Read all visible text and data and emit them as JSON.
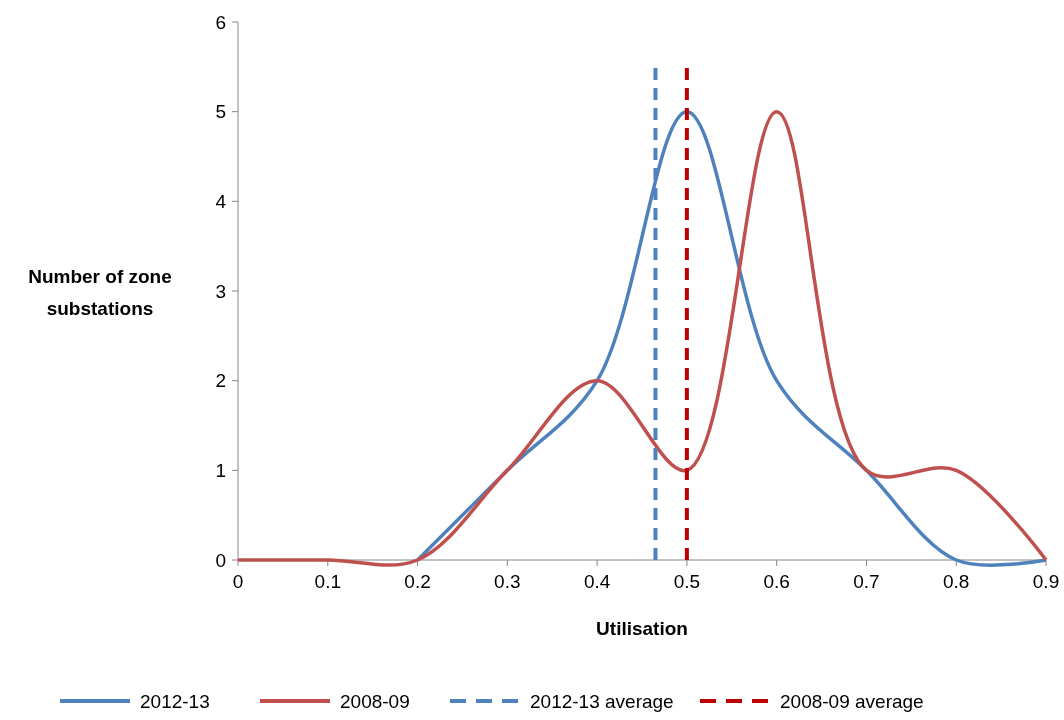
{
  "chart_data": {
    "type": "line",
    "xlabel": "Utilisation",
    "ylabel": "Number of zone substations",
    "x": [
      0,
      0.1,
      0.2,
      0.3,
      0.4,
      0.5,
      0.6,
      0.7,
      0.8,
      0.9
    ],
    "xlim": [
      0,
      0.9
    ],
    "xticks": [
      0,
      0.1,
      0.2,
      0.3,
      0.4,
      0.5,
      0.6,
      0.7,
      0.8,
      0.9
    ],
    "ylim": [
      0,
      6
    ],
    "yticks": [
      0,
      1,
      2,
      3,
      4,
      5,
      6
    ],
    "series": [
      {
        "name": "2012-13",
        "color": "#4f81bd",
        "values": [
          null,
          null,
          0,
          1,
          2,
          5,
          2,
          1,
          0,
          0
        ]
      },
      {
        "name": "2008-09",
        "color": "#c0504d",
        "values": [
          0,
          0,
          0,
          1,
          2,
          1,
          5,
          1,
          1,
          0
        ]
      }
    ],
    "ref_lines": [
      {
        "axis": "x",
        "value": 0.465,
        "label": "2012-13 average",
        "color": "#4f81bd",
        "line_style": "dashed"
      },
      {
        "axis": "x",
        "value": 0.5,
        "label": "2008-09 average",
        "color": "#c00000",
        "line_style": "dashed"
      }
    ],
    "legend": "bottom",
    "marker": "none",
    "line_style": "solid"
  }
}
